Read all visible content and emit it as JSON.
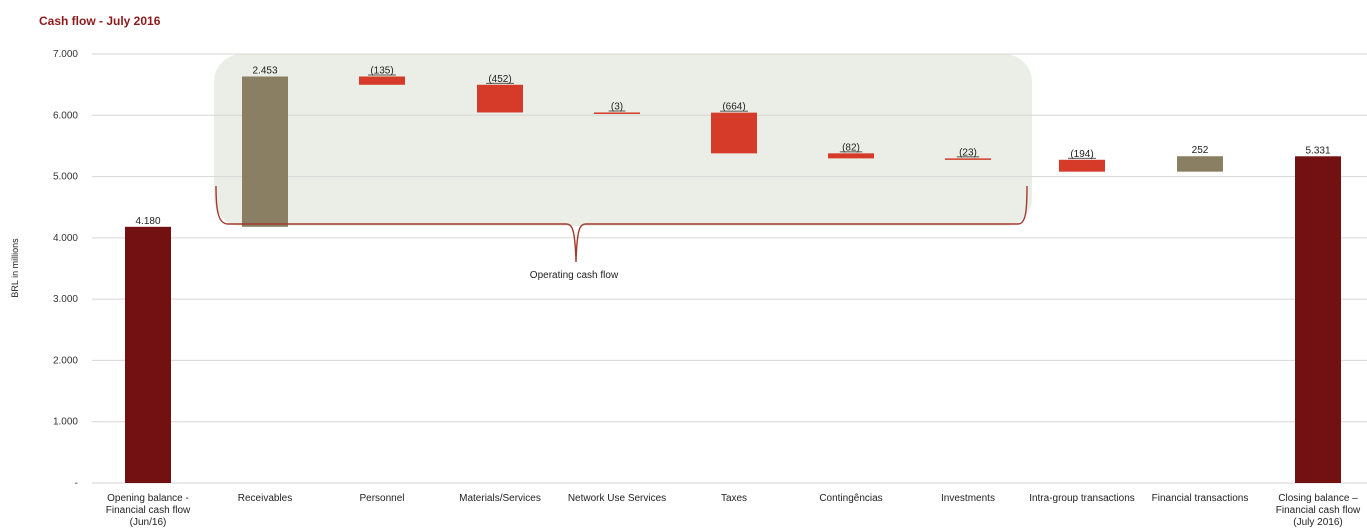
{
  "chart_data": {
    "type": "bar",
    "subtype": "waterfall",
    "title": "Cash flow - July 2016",
    "ylabel": "BRL in millions",
    "xlabel": "",
    "ylim": [
      0,
      7000
    ],
    "yticks": [
      "-",
      "1.000",
      "2.000",
      "3.000",
      "4.000",
      "5.000",
      "6.000",
      "7.000"
    ],
    "grid": true,
    "categories": [
      [
        "Opening balance -",
        "Financial cash flow",
        "(Jun/16)"
      ],
      [
        "Receivables"
      ],
      [
        "Personnel"
      ],
      [
        "Materials/Services"
      ],
      [
        "Network Use Services"
      ],
      [
        "Taxes"
      ],
      [
        "Contingências"
      ],
      [
        "Investments"
      ],
      [
        "Intra-group transactions"
      ],
      [
        "Financial transactions"
      ],
      [
        "Closing balance –",
        "Financial cash flow",
        "(July 2016)"
      ]
    ],
    "bars": [
      {
        "start": 0,
        "end": 4180,
        "label": "4.180",
        "kind": "total"
      },
      {
        "start": 4180,
        "end": 6633,
        "label": "2.453",
        "kind": "increase"
      },
      {
        "start": 6633,
        "end": 6498,
        "label": "(135)",
        "kind": "decrease"
      },
      {
        "start": 6498,
        "end": 6046,
        "label": "(452)",
        "kind": "decrease"
      },
      {
        "start": 6046,
        "end": 6043,
        "label": "(3)",
        "kind": "decrease"
      },
      {
        "start": 6043,
        "end": 5379,
        "label": "(664)",
        "kind": "decrease"
      },
      {
        "start": 5379,
        "end": 5297,
        "label": "(82)",
        "kind": "decrease"
      },
      {
        "start": 5297,
        "end": 5274,
        "label": "(23)",
        "kind": "decrease"
      },
      {
        "start": 5274,
        "end": 5080,
        "label": "(194)",
        "kind": "decrease"
      },
      {
        "start": 5080,
        "end": 5332,
        "label": "252",
        "kind": "increase"
      },
      {
        "start": 0,
        "end": 5331,
        "label": "5.331",
        "kind": "total"
      }
    ],
    "annotation": "Operating cash flow",
    "colors": {
      "total": "#731012",
      "increase": "#8a7f62",
      "decrease": "#d63a28",
      "highlight": "#ebeee6",
      "brace": "#a33a2e",
      "grid": "#d6d6d6"
    }
  }
}
